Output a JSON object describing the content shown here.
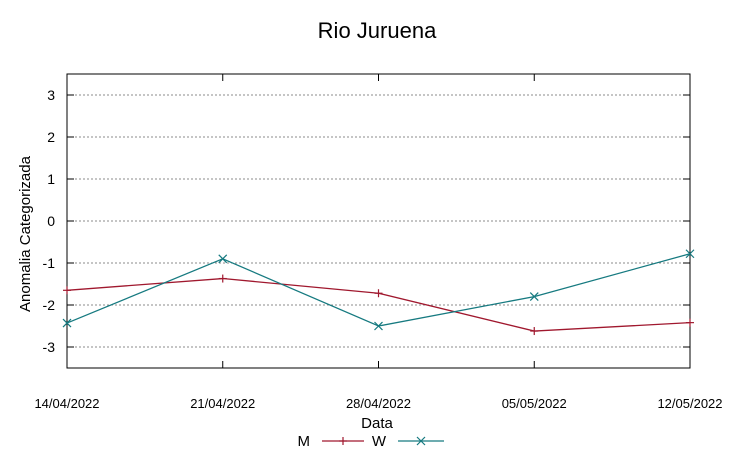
{
  "chart_data": {
    "type": "line",
    "title": "Rio Juruena",
    "xlabel": "Data",
    "ylabel": "Anomalia Categorizada",
    "categories": [
      "14/04/2022",
      "21/04/2022",
      "28/04/2022",
      "05/05/2022",
      "12/05/2022"
    ],
    "yticks": [
      "3",
      "2",
      "1",
      "0",
      "-1",
      "-2",
      "-3"
    ],
    "ylim": [
      -3.5,
      3.5
    ],
    "grid": true,
    "legend_position": "bottom",
    "series": [
      {
        "name": "M",
        "color": "#a0182e",
        "marker": "plus",
        "values": [
          -1.65,
          -1.37,
          -1.72,
          -2.62,
          -2.42
        ]
      },
      {
        "name": "W",
        "color": "#167a80",
        "marker": "cross",
        "values": [
          -2.43,
          -0.9,
          -2.5,
          -1.8,
          -0.78
        ]
      }
    ]
  }
}
